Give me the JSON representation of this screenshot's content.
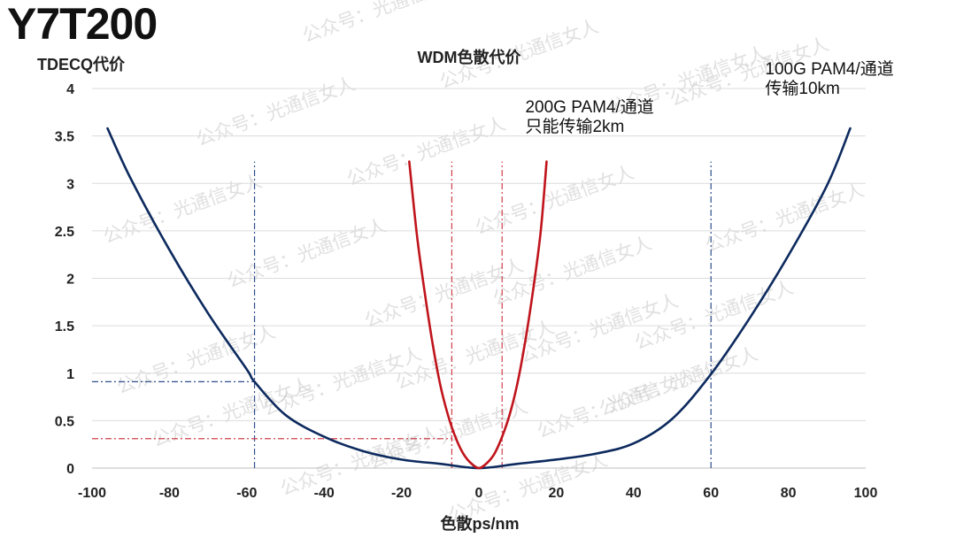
{
  "page": {
    "title": "Y7T200"
  },
  "watermark": {
    "text": "公众号：光通信女人"
  },
  "chart_data": {
    "type": "line",
    "title": "WDM色散代价",
    "xlabel": "色散ps/nm",
    "ylabel": "TDECQ代价",
    "xlim": [
      -100,
      100
    ],
    "ylim": [
      0,
      4
    ],
    "x_ticks": [
      "-100",
      "-80",
      "-60",
      "-40",
      "-20",
      "0",
      "20",
      "40",
      "60",
      "80",
      "100"
    ],
    "y_ticks": [
      "0",
      "0.5",
      "1",
      "1.5",
      "2",
      "2.5",
      "3",
      "3.5",
      "4"
    ],
    "grid": "horizontal",
    "legend": "none",
    "series": [
      {
        "color": "#0d2a5e",
        "points": [
          [
            -96,
            3.58
          ],
          [
            -90,
            3.05
          ],
          [
            -80,
            2.3
          ],
          [
            -70,
            1.63
          ],
          [
            -60,
            1.04
          ],
          [
            -58,
            0.91
          ],
          [
            -50,
            0.56
          ],
          [
            -40,
            0.33
          ],
          [
            -30,
            0.18
          ],
          [
            -20,
            0.09
          ],
          [
            -10,
            0.045
          ],
          [
            0,
            0.0
          ],
          [
            10,
            0.045
          ],
          [
            20,
            0.09
          ],
          [
            30,
            0.15
          ],
          [
            40,
            0.26
          ],
          [
            50,
            0.52
          ],
          [
            60,
            0.99
          ],
          [
            70,
            1.58
          ],
          [
            80,
            2.24
          ],
          [
            90,
            2.98
          ],
          [
            96,
            3.58
          ]
        ]
      },
      {
        "color": "#c0141c",
        "points": [
          [
            -18,
            3.23
          ],
          [
            -16,
            2.45
          ],
          [
            -14,
            1.85
          ],
          [
            -12,
            1.32
          ],
          [
            -10,
            0.88
          ],
          [
            -8,
            0.56
          ],
          [
            -6,
            0.32
          ],
          [
            -4,
            0.15
          ],
          [
            -2,
            0.05
          ],
          [
            0,
            0.0
          ],
          [
            2,
            0.05
          ],
          [
            4,
            0.15
          ],
          [
            6,
            0.33
          ],
          [
            8,
            0.57
          ],
          [
            10,
            0.9
          ],
          [
            12,
            1.34
          ],
          [
            14,
            1.87
          ],
          [
            16,
            2.5
          ],
          [
            17.5,
            3.23
          ]
        ]
      }
    ],
    "reference_lines": [
      {
        "color": "#2e4f8c",
        "kind": "vertical",
        "x": -58,
        "y_from": 0,
        "y_to": 3.23
      },
      {
        "color": "#2e4f8c",
        "kind": "vertical",
        "x": 60,
        "y_from": 0,
        "y_to": 3.23
      },
      {
        "color": "#2e4f8c",
        "kind": "horizontal",
        "y": 0.91,
        "x_from": -100,
        "x_to": -58
      },
      {
        "color": "#d0404a",
        "kind": "vertical",
        "x": -7,
        "y_from": 0,
        "y_to": 3.23
      },
      {
        "color": "#d0404a",
        "kind": "vertical",
        "x": 6,
        "y_from": 0,
        "y_to": 3.23
      },
      {
        "color": "#d0404a",
        "kind": "horizontal",
        "y": 0.31,
        "x_from": -100,
        "x_to": -7
      }
    ],
    "annotations": [
      {
        "lines": [
          "200G PAM4/通道",
          "只能传输2km"
        ],
        "x": 12,
        "y": 3.75
      },
      {
        "lines": [
          "100G PAM4/通道",
          "传输10km"
        ],
        "x": 74,
        "y": 4.15
      }
    ]
  }
}
